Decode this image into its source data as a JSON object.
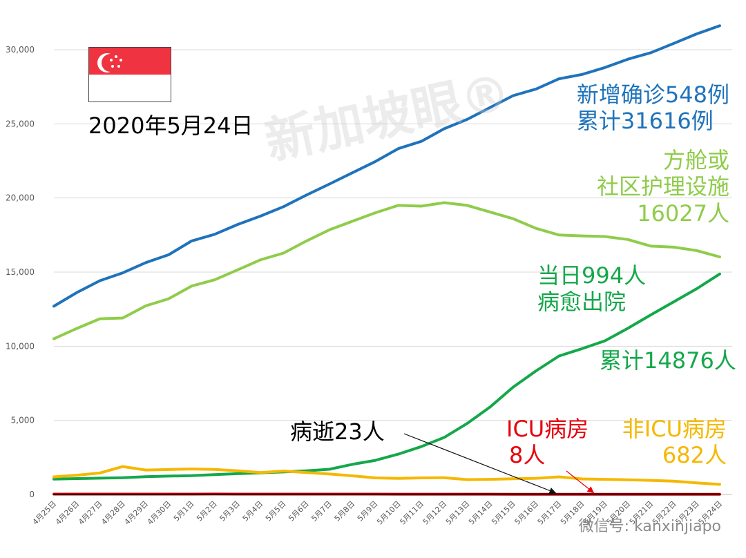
{
  "chart_data": {
    "type": "line",
    "title": "",
    "xlabel": "",
    "ylabel": "",
    "ylim": [
      0,
      32000
    ],
    "yticks": [
      0,
      5000,
      10000,
      15000,
      20000,
      25000,
      30000
    ],
    "ytick_labels": [
      "0",
      "5,000",
      "10,000",
      "15,000",
      "20,000",
      "25,000",
      "30,000"
    ],
    "grid": "horizontal",
    "categories": [
      "4月25日",
      "4月26日",
      "4月27日",
      "4月28日",
      "4月29日",
      "4月30日",
      "5月1日",
      "5月2日",
      "5月3日",
      "5月4日",
      "5月5日",
      "5月6日",
      "5月7日",
      "5月8日",
      "5月9日",
      "5月10日",
      "5月11日",
      "5月12日",
      "5月13日",
      "5月14日",
      "5月15日",
      "5月16日",
      "5月17日",
      "5月18日",
      "5月19日",
      "5月20日",
      "5月21日",
      "5月22日",
      "5月23日",
      "5月24日"
    ],
    "series": [
      {
        "key": "confirmed",
        "color": "#1f73bb",
        "values": [
          12700,
          13620,
          14420,
          14950,
          15640,
          16170,
          17100,
          17550,
          18210,
          18780,
          19410,
          20200,
          20940,
          21700,
          22460,
          23330,
          23820,
          24670,
          25300,
          26100,
          26900,
          27350,
          28040,
          28330,
          28800,
          29360,
          29800,
          30430,
          31070,
          31616
        ]
      },
      {
        "key": "facility",
        "color": "#8fcc4a",
        "values": [
          10500,
          11200,
          11850,
          11900,
          12720,
          13200,
          14060,
          14480,
          15150,
          15830,
          16280,
          17100,
          17850,
          18430,
          19000,
          19500,
          19450,
          19680,
          19500,
          19050,
          18600,
          17950,
          17500,
          17440,
          17400,
          17200,
          16750,
          16680,
          16450,
          16027
        ]
      },
      {
        "key": "discharged",
        "color": "#14a84a",
        "values": [
          1040,
          1070,
          1100,
          1130,
          1200,
          1240,
          1270,
          1340,
          1400,
          1460,
          1520,
          1600,
          1700,
          2030,
          2300,
          2720,
          3230,
          3850,
          4790,
          5900,
          7240,
          8340,
          9340,
          9835,
          10365,
          11207,
          12117,
          12995,
          13882,
          14876
        ]
      },
      {
        "key": "nonicu",
        "color": "#f5b800",
        "values": [
          1190,
          1300,
          1450,
          1880,
          1650,
          1680,
          1720,
          1690,
          1600,
          1480,
          1580,
          1480,
          1380,
          1260,
          1120,
          1080,
          1120,
          1130,
          1000,
          1020,
          1060,
          1090,
          1190,
          1050,
          1020,
          990,
          950,
          900,
          780,
          682
        ]
      },
      {
        "key": "icu",
        "color": "#e8000b",
        "values": [
          22,
          23,
          24,
          25,
          25,
          25,
          25,
          26,
          25,
          24,
          23,
          23,
          22,
          22,
          21,
          20,
          20,
          19,
          18,
          17,
          16,
          15,
          14,
          13,
          12,
          11,
          10,
          9,
          8,
          8
        ]
      },
      {
        "key": "deaths",
        "color": "#111111",
        "values": [
          12,
          14,
          14,
          14,
          15,
          15,
          17,
          17,
          18,
          18,
          18,
          18,
          20,
          20,
          20,
          20,
          20,
          20,
          21,
          21,
          21,
          22,
          22,
          22,
          23,
          23,
          23,
          23,
          23,
          23
        ]
      }
    ],
    "annotations": {
      "date": "2020年5月24日",
      "confirmed_line1": "新增确诊548例",
      "confirmed_line2": "累计31616例",
      "facility_line1": "方舱或",
      "facility_line2": "社区护理设施",
      "facility_line3": "16027人",
      "discharged_line1": "当日994人",
      "discharged_line2": "病愈出院",
      "discharged_total": "累计14876人",
      "icu_line1": "ICU病房",
      "icu_line2": "8人",
      "nonicu_line1": "非ICU病房",
      "nonicu_line2": "682人",
      "deaths": "病逝23人"
    },
    "watermark": "新加坡眼®",
    "wechat": "微信号: kanxinjiapo"
  }
}
